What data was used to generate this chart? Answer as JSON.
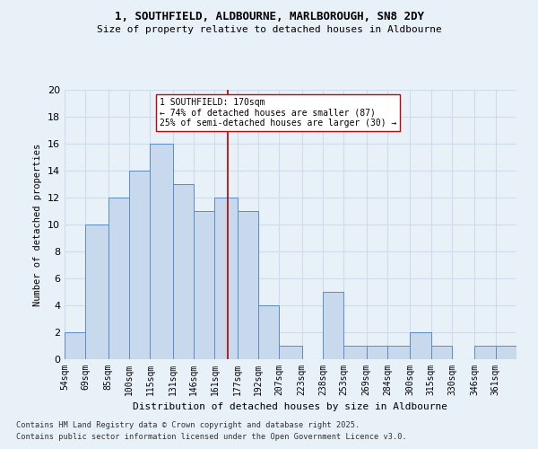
{
  "title1": "1, SOUTHFIELD, ALDBOURNE, MARLBOROUGH, SN8 2DY",
  "title2": "Size of property relative to detached houses in Aldbourne",
  "xlabel": "Distribution of detached houses by size in Aldbourne",
  "ylabel": "Number of detached properties",
  "bin_labels": [
    "54sqm",
    "69sqm",
    "85sqm",
    "100sqm",
    "115sqm",
    "131sqm",
    "146sqm",
    "161sqm",
    "177sqm",
    "192sqm",
    "207sqm",
    "223sqm",
    "238sqm",
    "253sqm",
    "269sqm",
    "284sqm",
    "300sqm",
    "315sqm",
    "330sqm",
    "346sqm",
    "361sqm"
  ],
  "bin_edges": [
    54,
    69,
    85,
    100,
    115,
    131,
    146,
    161,
    177,
    192,
    207,
    223,
    238,
    253,
    269,
    284,
    300,
    315,
    330,
    346,
    361,
    376
  ],
  "bar_heights": [
    2,
    10,
    12,
    14,
    16,
    13,
    11,
    12,
    11,
    4,
    1,
    0,
    5,
    1,
    1,
    1,
    2,
    1,
    0,
    1,
    1
  ],
  "bar_color": "#c8d9ee",
  "bar_edgecolor": "#5b8cc8",
  "property_size": 170,
  "vline_color": "#aa0000",
  "annotation_text": "1 SOUTHFIELD: 170sqm\n← 74% of detached houses are smaller (87)\n25% of semi-detached houses are larger (30) →",
  "annotation_box_edgecolor": "#cc0000",
  "annotation_box_facecolor": "#ffffff",
  "ylim": [
    0,
    20
  ],
  "yticks": [
    0,
    2,
    4,
    6,
    8,
    10,
    12,
    14,
    16,
    18,
    20
  ],
  "bg_color": "#e8f0f8",
  "grid_color": "#d0dce8",
  "footer1": "Contains HM Land Registry data © Crown copyright and database right 2025.",
  "footer2": "Contains public sector information licensed under the Open Government Licence v3.0."
}
